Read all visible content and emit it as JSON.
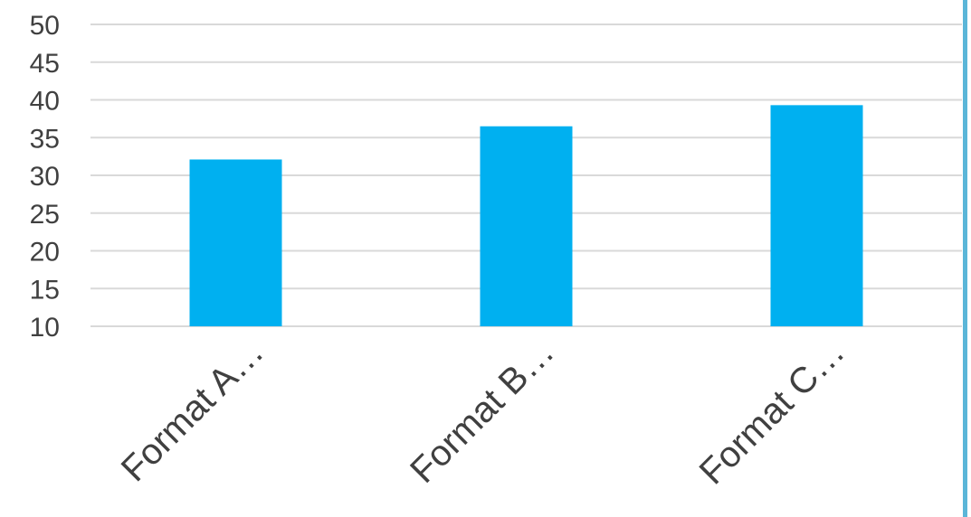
{
  "chart_data": {
    "type": "bar",
    "categories": [
      "Format A…",
      "Format B…",
      "Format C…"
    ],
    "values": [
      32.1,
      36.5,
      39.3
    ],
    "title": "",
    "xlabel": "",
    "ylabel": "",
    "ylim": [
      10,
      50
    ],
    "yticks": [
      10,
      15,
      20,
      25,
      30,
      35,
      40,
      45,
      50
    ],
    "grid": true,
    "legend": "none",
    "colors": {
      "bar": "#00B0F0",
      "grid": "#D9D9D9",
      "axis_text": "#404040",
      "right_border": "#5BB6D8"
    }
  }
}
